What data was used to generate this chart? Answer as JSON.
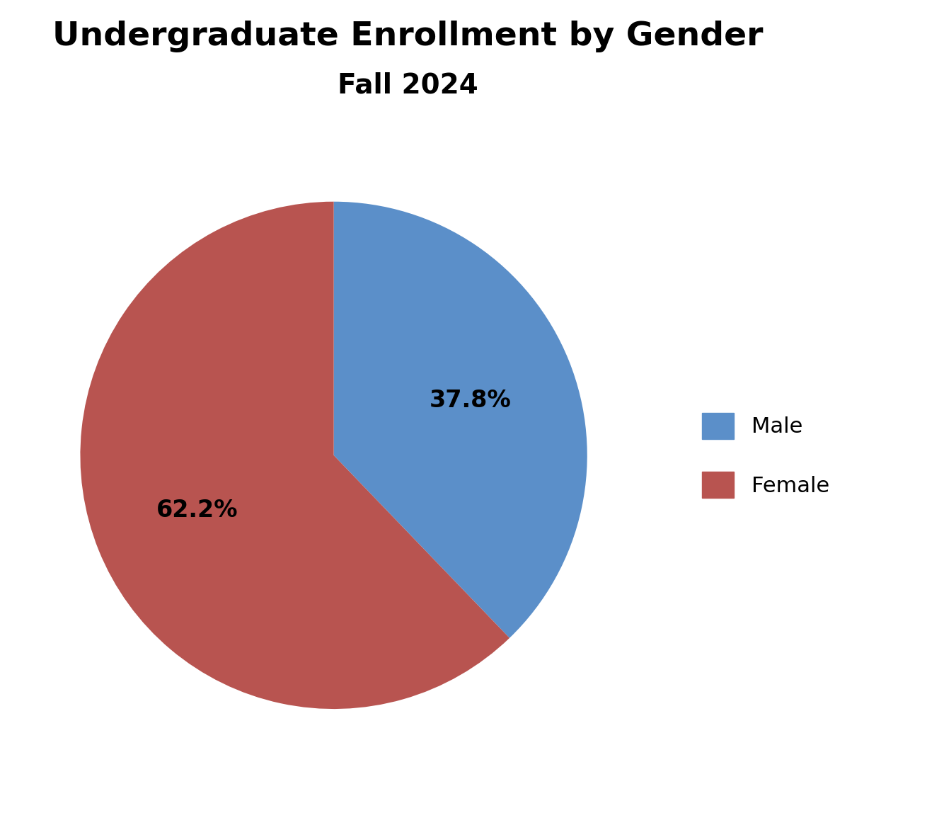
{
  "title_line1": "Undergraduate Enrollment by Gender",
  "title_line2": "Fall 2024",
  "labels": [
    "Male",
    "Female"
  ],
  "values": [
    37.8,
    62.2
  ],
  "colors": [
    "#5b8fc9",
    "#b85450"
  ],
  "autopct_values": [
    "37.8%",
    "62.2%"
  ],
  "startangle": 90,
  "background_color": "#ffffff",
  "title_fontsize": 34,
  "subtitle_fontsize": 28,
  "autopct_fontsize": 24,
  "legend_fontsize": 22,
  "text_color": "#000000",
  "pctdistance": 0.58
}
